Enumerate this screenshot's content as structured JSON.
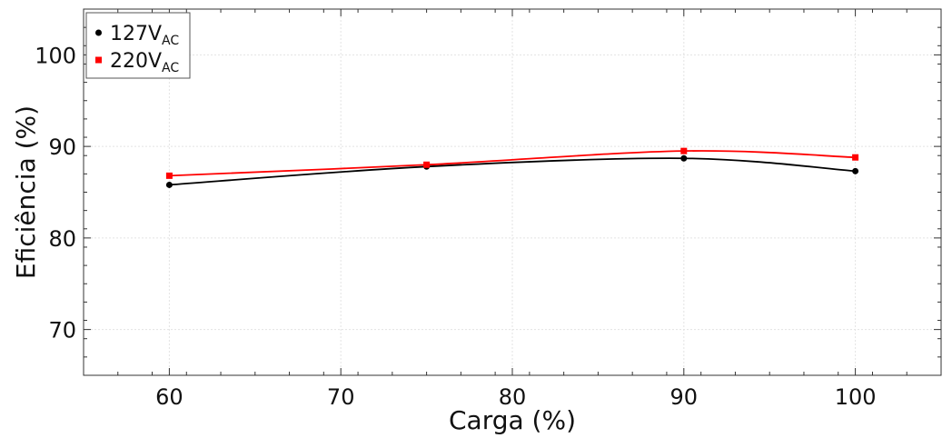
{
  "chart_data": {
    "type": "line",
    "title": "",
    "xlabel": "Carga (%)",
    "ylabel": "Eficiência (%)",
    "xlim": [
      55,
      105
    ],
    "ylim": [
      65,
      105
    ],
    "xticks": [
      60,
      70,
      80,
      90,
      100
    ],
    "yticks": [
      70,
      80,
      90,
      100
    ],
    "grid": true,
    "legend_position": "top-left",
    "series": [
      {
        "name": "127V",
        "name_sub": "AC",
        "color": "#000000",
        "marker": "circle",
        "x": [
          60,
          75,
          90,
          100
        ],
        "y": [
          85.8,
          87.8,
          88.7,
          87.3
        ]
      },
      {
        "name": "220V",
        "name_sub": "AC",
        "color": "#ff0000",
        "marker": "square",
        "x": [
          60,
          75,
          90,
          100
        ],
        "y": [
          86.8,
          88.0,
          89.5,
          88.8
        ]
      }
    ]
  }
}
